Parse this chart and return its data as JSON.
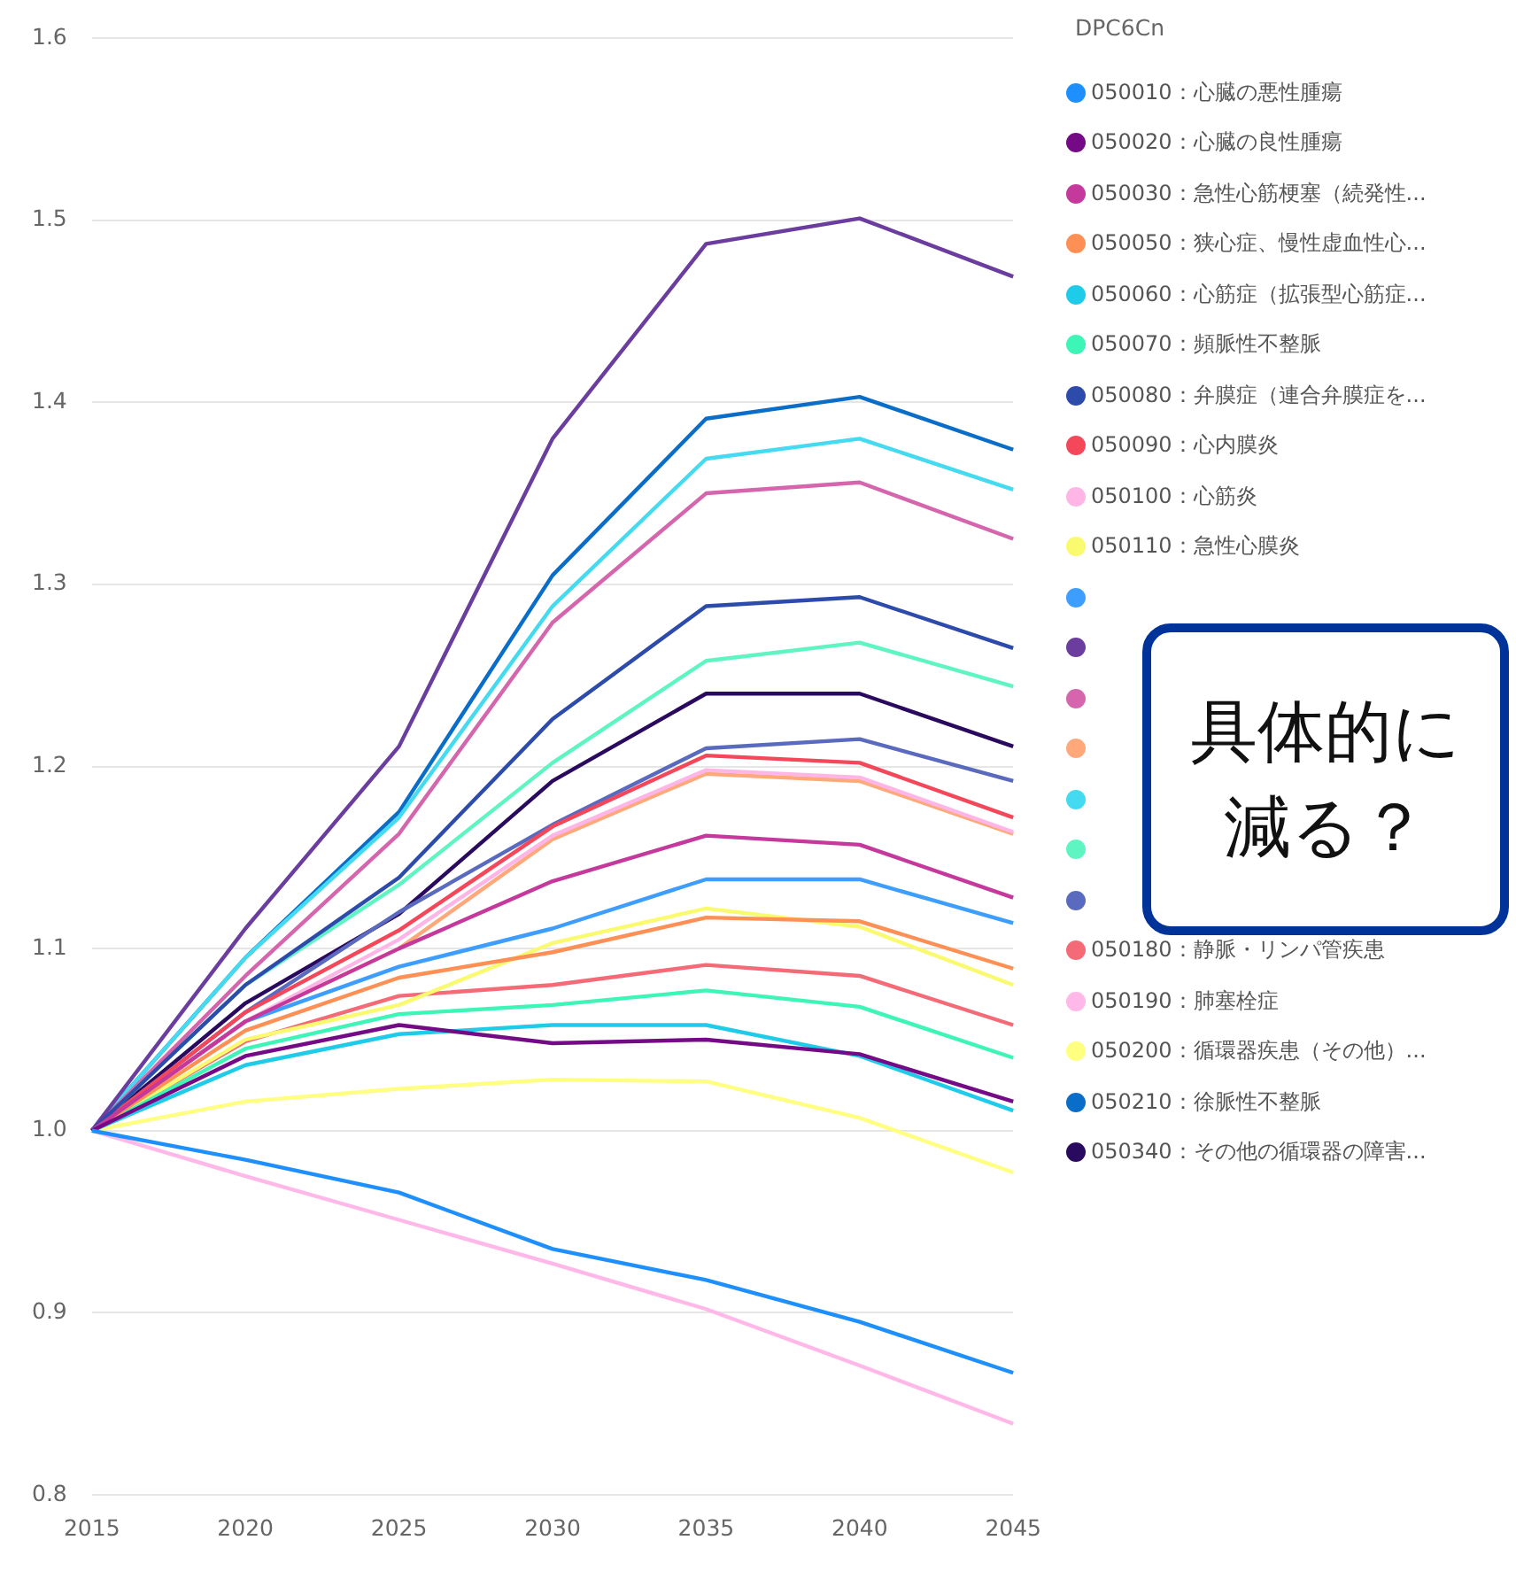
{
  "chart_data": {
    "type": "line",
    "legend_title": "DPC6Cn",
    "categories": [
      "2015",
      "2020",
      "2025",
      "2030",
      "2035",
      "2040",
      "2045"
    ],
    "ylim": [
      0.8,
      1.6
    ],
    "yticks": [
      0.8,
      0.9,
      {
        "value": 1,
        "label": "1.0"
      },
      1.1,
      1.2,
      1.3,
      1.4,
      1.5,
      1.6
    ],
    "grid": "y",
    "legend": "top right",
    "marker": "none",
    "line_style": "solid",
    "annotations": [
      "具体的に",
      "減る？"
    ],
    "series": [
      {
        "name": "050010：心臓の悪性腫瘍",
        "color": "#1e8fff",
        "values": [
          1,
          0.984,
          0.966,
          0.935,
          0.918,
          0.895,
          0.867
        ]
      },
      {
        "name": "050020：心臓の良性腫瘍",
        "color": "#750a87",
        "values": [
          1,
          1.041,
          1.058,
          1.048,
          1.05,
          1.042,
          1.016
        ]
      },
      {
        "name": "050030：急性心筋梗塞（続発性...",
        "color": "#c4399b",
        "values": [
          1,
          1.06,
          1.1,
          1.137,
          1.162,
          1.157,
          1.128
        ]
      },
      {
        "name": "050050：狭心症、慢性虚血性心...",
        "color": "#ff9055",
        "values": [
          1,
          1.055,
          1.084,
          1.098,
          1.117,
          1.115,
          1.089
        ]
      },
      {
        "name": "050060：心筋症（拡張型心筋症...",
        "color": "#1ecbe8",
        "values": [
          1,
          1.036,
          1.053,
          1.058,
          1.058,
          1.041,
          1.011
        ]
      },
      {
        "name": "050070：頻脈性不整脈",
        "color": "#3ef5b8",
        "values": [
          1,
          1.045,
          1.064,
          1.069,
          1.077,
          1.068,
          1.04
        ]
      },
      {
        "name": "050080：弁膜症（連合弁膜症を...",
        "color": "#2d4bab",
        "values": [
          1,
          1.08,
          1.139,
          1.226,
          1.288,
          1.293,
          1.265
        ]
      },
      {
        "name": "050090：心内膜炎",
        "color": "#f5475a",
        "values": [
          1,
          1.065,
          1.11,
          1.167,
          1.206,
          1.202,
          1.172
        ]
      },
      {
        "name": "050100：心筋炎",
        "color": "#ffb6e6",
        "values": [
          1,
          1.06,
          1.105,
          1.162,
          1.198,
          1.194,
          1.164
        ]
      },
      {
        "name": "050110：急性心膜炎",
        "color": "#fafa6e",
        "values": [
          1,
          1.05,
          1.069,
          1.103,
          1.122,
          1.112,
          1.08
        ]
      },
      {
        "color": "#3d9eff",
        "values": [
          1,
          1.06,
          1.09,
          1.111,
          1.138,
          1.138,
          1.114
        ]
      },
      {
        "color": "#6a3d9e",
        "values": [
          1,
          1.111,
          1.211,
          1.38,
          1.487,
          1.501,
          1.469
        ]
      },
      {
        "color": "#d565ad",
        "values": [
          1,
          1.085,
          1.163,
          1.279,
          1.35,
          1.356,
          1.325
        ]
      },
      {
        "color": "#ffa87a",
        "values": [
          1,
          1.06,
          1.1,
          1.16,
          1.196,
          1.192,
          1.163
        ]
      },
      {
        "color": "#44dbf0",
        "values": [
          1,
          1.095,
          1.172,
          1.288,
          1.369,
          1.38,
          1.352
        ]
      },
      {
        "color": "#5ff5c3",
        "values": [
          1,
          1.08,
          1.135,
          1.202,
          1.258,
          1.268,
          1.244
        ]
      },
      {
        "color": "#5a6bbf",
        "values": [
          1,
          1.065,
          1.12,
          1.168,
          1.21,
          1.215,
          1.192
        ]
      },
      {
        "name": "050180：静脈・リンパ管疾患",
        "color": "#f56a77",
        "values": [
          1,
          1.049,
          1.074,
          1.08,
          1.091,
          1.085,
          1.058
        ]
      },
      {
        "name": "050190：肺塞栓症",
        "color": "#ffb8e8",
        "values": [
          1,
          0.975,
          0.951,
          0.927,
          0.902,
          0.871,
          0.839
        ]
      },
      {
        "name": "050200：循環器疾患（その他）...",
        "color": "#ffff80",
        "values": [
          1,
          1.016,
          1.023,
          1.028,
          1.027,
          1.007,
          0.977
        ]
      },
      {
        "name": "050210：徐脈性不整脈",
        "color": "#0a6ec8",
        "values": [
          1,
          1.095,
          1.175,
          1.305,
          1.391,
          1.403,
          1.374
        ]
      },
      {
        "name": "050340：その他の循環器の障害...",
        "color": "#2a0a5e",
        "values": [
          1,
          1.07,
          1.119,
          1.192,
          1.24,
          1.24,
          1.211
        ]
      }
    ]
  }
}
